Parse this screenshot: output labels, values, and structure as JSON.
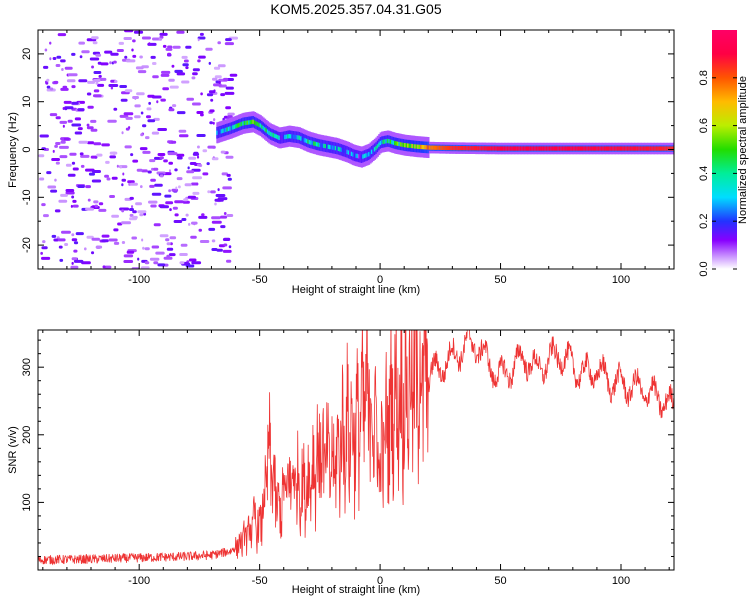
{
  "title": "KOM5.2025.357.04.31.G05",
  "chart_data": [
    {
      "type": "heatmap",
      "title": "KOM5.2025.357.04.31.G05",
      "xlabel": "Height of straight line (km)",
      "ylabel": "Frequency (Hz)",
      "xlim": [
        -142,
        122
      ],
      "ylim": [
        -25,
        25
      ],
      "xticks": [
        -100,
        -50,
        0,
        50,
        100
      ],
      "yticks": [
        -20,
        -10,
        0,
        10,
        20
      ],
      "colorbar": {
        "label": "Normalized spectral amplitude",
        "range": [
          0,
          1
        ],
        "ticks": [
          0.0,
          0.2,
          0.4,
          0.6,
          0.8
        ],
        "tick_labels": [
          "0.0",
          "0.2",
          "0.4",
          "0.6",
          "0.8"
        ]
      },
      "ridge": {
        "description": "dominant frequency track",
        "x": [
          -68,
          -62,
          -57,
          -53,
          -50,
          -46,
          -42,
          -38,
          -34,
          -30,
          -26,
          -22,
          -18,
          -14,
          -11,
          -8,
          -5,
          -2,
          0,
          3,
          6,
          10,
          15,
          20,
          30,
          50,
          80,
          110,
          122
        ],
        "y": [
          3.5,
          4.5,
          5.5,
          5.8,
          5.0,
          3.3,
          2.4,
          2.8,
          2.5,
          1.6,
          1.0,
          0.6,
          0.2,
          -0.5,
          -1.2,
          -1.6,
          -1.0,
          0.3,
          1.5,
          1.8,
          1.3,
          0.9,
          0.6,
          0.4,
          0.3,
          0.2,
          0.2,
          0.2,
          0.2
        ],
        "amplitude": [
          0.3,
          0.35,
          0.45,
          0.45,
          0.4,
          0.35,
          0.25,
          0.3,
          0.3,
          0.35,
          0.35,
          0.3,
          0.3,
          0.25,
          0.2,
          0.2,
          0.25,
          0.3,
          0.35,
          0.4,
          0.45,
          0.5,
          0.6,
          0.75,
          0.85,
          0.9,
          0.9,
          0.88,
          0.85
        ]
      },
      "noise_region_x": [
        -142,
        -62
      ],
      "noise_amplitude_max": 0.12
    },
    {
      "type": "line",
      "xlabel": "Height of straight line (km)",
      "ylabel": "SNR (v/v)",
      "xlim": [
        -142,
        122
      ],
      "ylim": [
        0,
        355
      ],
      "xticks": [
        -100,
        -50,
        0,
        50,
        100
      ],
      "yticks": [
        100,
        200,
        300
      ],
      "color": "#ee3333",
      "series": [
        {
          "name": "SNR",
          "x": [
            -142,
            -120,
            -100,
            -80,
            -70,
            -62,
            -58,
            -54,
            -52,
            -50,
            -48,
            -46,
            -44,
            -42,
            -40,
            -37,
            -34,
            -31,
            -28,
            -25,
            -22,
            -19,
            -16,
            -13,
            -10,
            -7,
            -4,
            -2,
            0,
            2,
            5,
            8,
            11,
            14,
            17,
            20,
            25,
            30,
            35,
            40,
            45,
            50,
            55,
            60,
            65,
            70,
            75,
            80,
            85,
            90,
            95,
            100,
            105,
            110,
            115,
            118,
            122
          ],
          "y": [
            15,
            16,
            18,
            20,
            22,
            28,
            40,
            58,
            72,
            60,
            105,
            170,
            125,
            85,
            110,
            135,
            130,
            120,
            150,
            175,
            160,
            150,
            195,
            210,
            205,
            240,
            250,
            215,
            145,
            195,
            245,
            255,
            265,
            275,
            285,
            285,
            300,
            315,
            330,
            335,
            305,
            285,
            300,
            315,
            295,
            310,
            320,
            300,
            290,
            295,
            280,
            275,
            270,
            265,
            255,
            250,
            240
          ]
        }
      ]
    }
  ]
}
